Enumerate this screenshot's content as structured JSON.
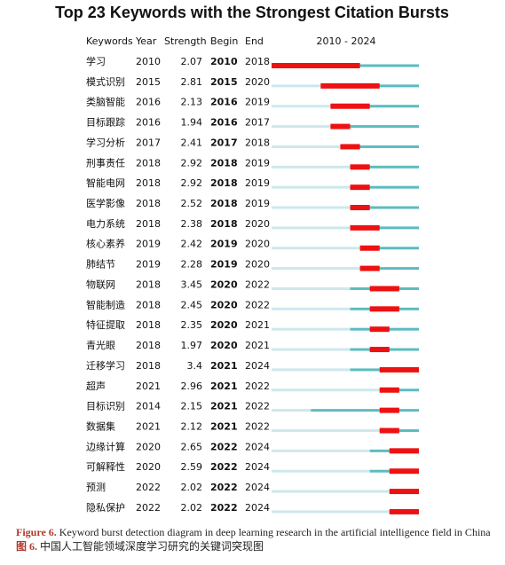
{
  "chart_data": {
    "type": "burst",
    "title": "Top 23 Keywords with the Strongest Citation Bursts",
    "columns": [
      "Keywords",
      "Year",
      "Strength",
      "Begin",
      "End"
    ],
    "timeline_label": "2010 - 2024",
    "xlim": [
      2010,
      2024
    ],
    "colors": {
      "before": "#cde8ec",
      "active": "#5bbcbf",
      "burst": "#ee1111"
    },
    "rows": [
      {
        "keyword": "学习",
        "year": 2010,
        "strength": 2.07,
        "begin": 2010,
        "end": 2018
      },
      {
        "keyword": "模式识别",
        "year": 2015,
        "strength": 2.81,
        "begin": 2015,
        "end": 2020
      },
      {
        "keyword": "类脑智能",
        "year": 2016,
        "strength": 2.13,
        "begin": 2016,
        "end": 2019
      },
      {
        "keyword": "目标跟踪",
        "year": 2016,
        "strength": 1.94,
        "begin": 2016,
        "end": 2017
      },
      {
        "keyword": "学习分析",
        "year": 2017,
        "strength": 2.41,
        "begin": 2017,
        "end": 2018
      },
      {
        "keyword": "刑事责任",
        "year": 2018,
        "strength": 2.92,
        "begin": 2018,
        "end": 2019
      },
      {
        "keyword": "智能电网",
        "year": 2018,
        "strength": 2.92,
        "begin": 2018,
        "end": 2019
      },
      {
        "keyword": "医学影像",
        "year": 2018,
        "strength": 2.52,
        "begin": 2018,
        "end": 2019
      },
      {
        "keyword": "电力系统",
        "year": 2018,
        "strength": 2.38,
        "begin": 2018,
        "end": 2020
      },
      {
        "keyword": "核心素养",
        "year": 2019,
        "strength": 2.42,
        "begin": 2019,
        "end": 2020
      },
      {
        "keyword": "肺结节",
        "year": 2019,
        "strength": 2.28,
        "begin": 2019,
        "end": 2020
      },
      {
        "keyword": "物联网",
        "year": 2018,
        "strength": 3.45,
        "begin": 2020,
        "end": 2022
      },
      {
        "keyword": "智能制造",
        "year": 2018,
        "strength": 2.45,
        "begin": 2020,
        "end": 2022
      },
      {
        "keyword": "特征提取",
        "year": 2018,
        "strength": 2.35,
        "begin": 2020,
        "end": 2021
      },
      {
        "keyword": "青光眼",
        "year": 2018,
        "strength": 1.97,
        "begin": 2020,
        "end": 2021
      },
      {
        "keyword": "迁移学习",
        "year": 2018,
        "strength": 3.4,
        "begin": 2021,
        "end": 2024
      },
      {
        "keyword": "超声",
        "year": 2021,
        "strength": 2.96,
        "begin": 2021,
        "end": 2022
      },
      {
        "keyword": "目标识别",
        "year": 2014,
        "strength": 2.15,
        "begin": 2021,
        "end": 2022
      },
      {
        "keyword": "数据集",
        "year": 2021,
        "strength": 2.12,
        "begin": 2021,
        "end": 2022
      },
      {
        "keyword": "边缘计算",
        "year": 2020,
        "strength": 2.65,
        "begin": 2022,
        "end": 2024
      },
      {
        "keyword": "可解释性",
        "year": 2020,
        "strength": 2.59,
        "begin": 2022,
        "end": 2024
      },
      {
        "keyword": "预测",
        "year": 2022,
        "strength": 2.02,
        "begin": 2022,
        "end": 2024
      },
      {
        "keyword": "隐私保护",
        "year": 2022,
        "strength": 2.02,
        "begin": 2022,
        "end": 2024
      }
    ],
    "caption_label_en": "Figure 6.",
    "caption_en": "Keyword burst detection diagram in deep learning research in the artificial intelligence field in China",
    "caption_label_cn": "图 6.",
    "caption_cn": "中国人工智能领域深度学习研究的关键词突现图"
  }
}
